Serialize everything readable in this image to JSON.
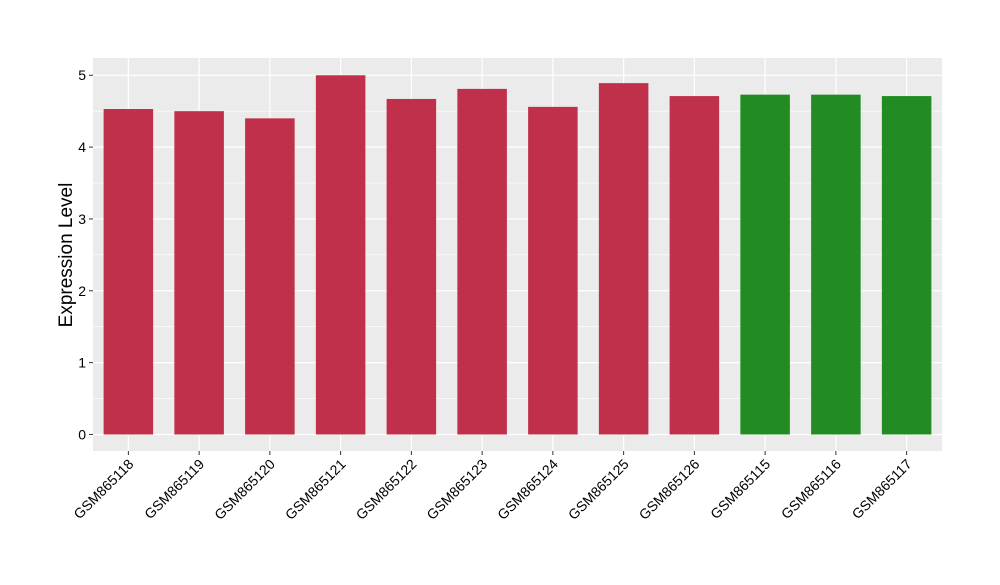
{
  "chart_data": {
    "type": "bar",
    "title": "",
    "xlabel": "",
    "ylabel": "Expression Level",
    "ylim": [
      -0.23,
      5.24
    ],
    "y_ticks": [
      0,
      1,
      2,
      3,
      4,
      5
    ],
    "categories": [
      "GSM865118",
      "GSM865119",
      "GSM865120",
      "GSM865121",
      "GSM865122",
      "GSM865123",
      "GSM865124",
      "GSM865125",
      "GSM865126",
      "GSM865115",
      "GSM865116",
      "GSM865117"
    ],
    "values": [
      4.53,
      4.5,
      4.4,
      5.0,
      4.67,
      4.81,
      4.56,
      4.89,
      4.71,
      4.73,
      4.73,
      4.71
    ],
    "bar_colors": [
      "#c0304a",
      "#c0304a",
      "#c0304a",
      "#c0304a",
      "#c0304a",
      "#c0304a",
      "#c0304a",
      "#c0304a",
      "#c0304a",
      "#228b22",
      "#228b22",
      "#228b22"
    ],
    "panel_background": "#ebebeb",
    "grid": true,
    "grid_color": "#ffffff",
    "legend": "none"
  }
}
